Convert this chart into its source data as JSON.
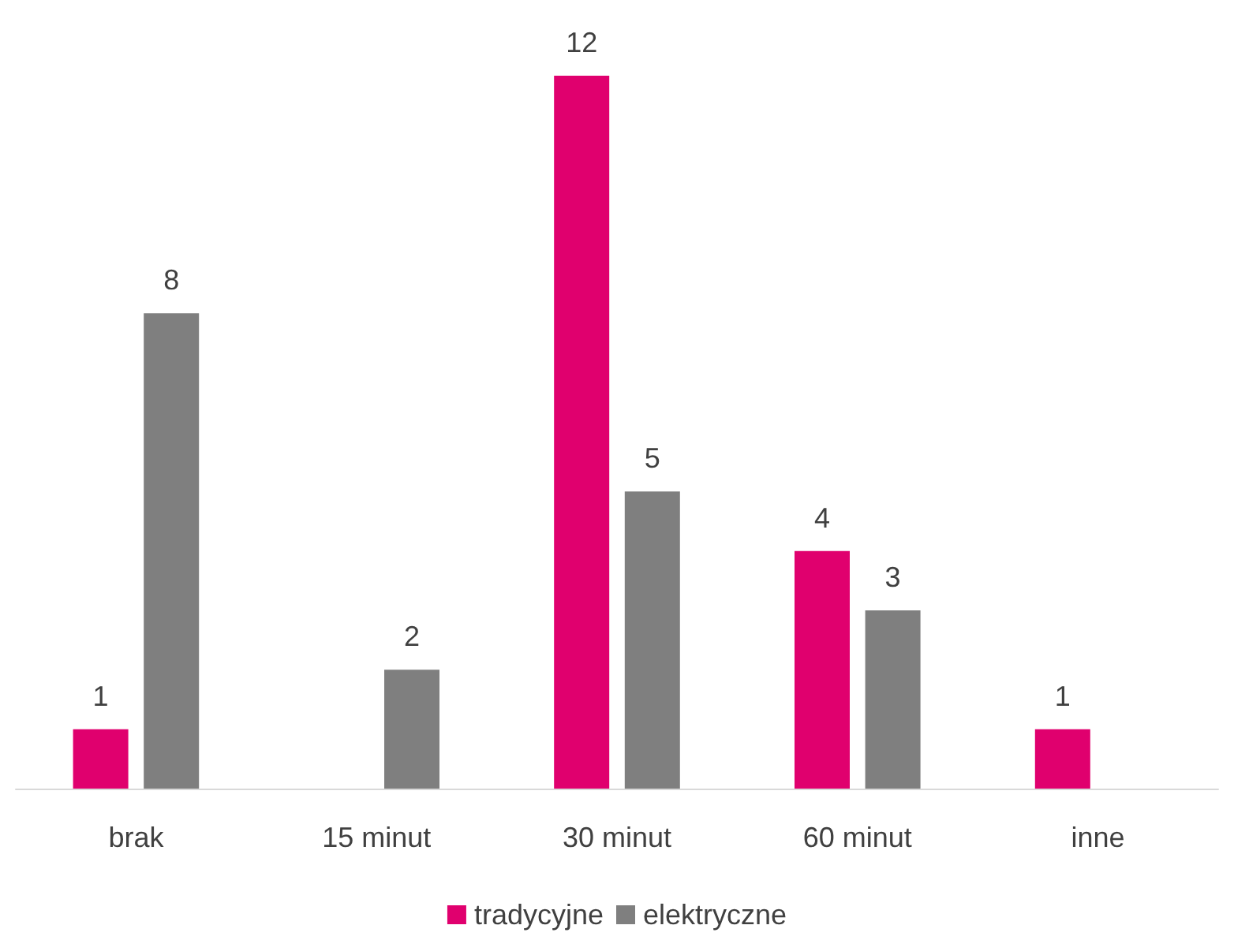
{
  "chart_data": {
    "type": "bar",
    "categories": [
      "brak",
      "15 minut",
      "30 minut",
      "60 minut",
      "inne"
    ],
    "series": [
      {
        "name": "tradycyjne",
        "color": "#e0006e",
        "values": [
          1,
          null,
          12,
          4,
          1
        ]
      },
      {
        "name": "elektryczne",
        "color": "#7f7f7f",
        "values": [
          8,
          2,
          5,
          3,
          null
        ]
      }
    ],
    "data_labels": true,
    "legend": "bottom"
  }
}
